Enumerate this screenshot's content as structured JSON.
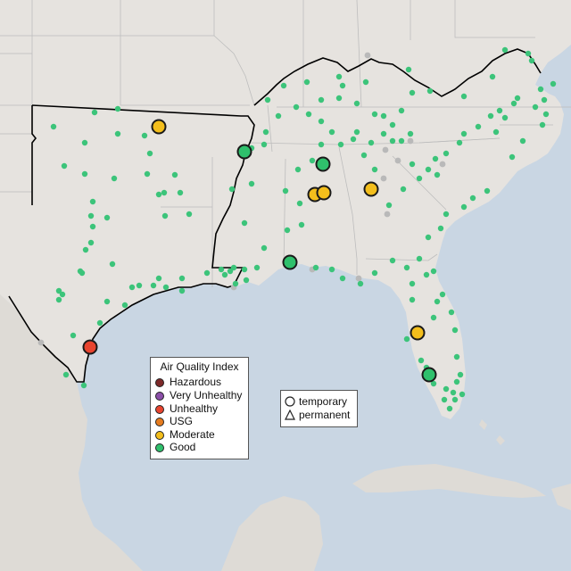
{
  "map": {
    "colors": {
      "water": "#c9d6e3",
      "land": "#e6e3df",
      "land_south": "#dedbd6",
      "border": "#bdbdbd",
      "region_outline": "#000000",
      "dot_good": "#3cc47a",
      "dot_gray": "#b9b9b9"
    }
  },
  "legend": {
    "title": "Air Quality Index",
    "items": [
      {
        "label": "Hazardous",
        "color": "#7e2a2a"
      },
      {
        "label": "Very Unhealthy",
        "color": "#8b4fa8"
      },
      {
        "label": "Unhealthy",
        "color": "#e8442f"
      },
      {
        "label": "USG",
        "color": "#e67c1f"
      },
      {
        "label": "Moderate",
        "color": "#f3be1c"
      },
      {
        "label": "Good",
        "color": "#2fc06c"
      }
    ]
  },
  "type_legend": {
    "items": [
      {
        "label": "temporary",
        "icon": "circle-icon"
      },
      {
        "label": "permanent",
        "icon": "triangle-icon"
      }
    ]
  },
  "monitors_highlighted": [
    {
      "category": "Moderate",
      "lon": -94.7,
      "lat": 36.9
    },
    {
      "category": "Good",
      "lon": -90.2,
      "lat": 35.1
    },
    {
      "category": "Good",
      "lon": -86.8,
      "lat": 34.7
    },
    {
      "category": "Moderate",
      "lon": -87.4,
      "lat": 33.5
    },
    {
      "category": "Moderate",
      "lon": -86.9,
      "lat": 33.5
    },
    {
      "category": "Moderate",
      "lon": -84.6,
      "lat": 33.6
    },
    {
      "category": "Good",
      "lon": -87.9,
      "lat": 30.7
    },
    {
      "category": "Unhealthy",
      "lon": -97.4,
      "lat": 27.8
    },
    {
      "category": "Moderate",
      "lon": -82.1,
      "lat": 28.2
    },
    {
      "category": "Good",
      "lon": -81.4,
      "lat": 26.3
    }
  ]
}
